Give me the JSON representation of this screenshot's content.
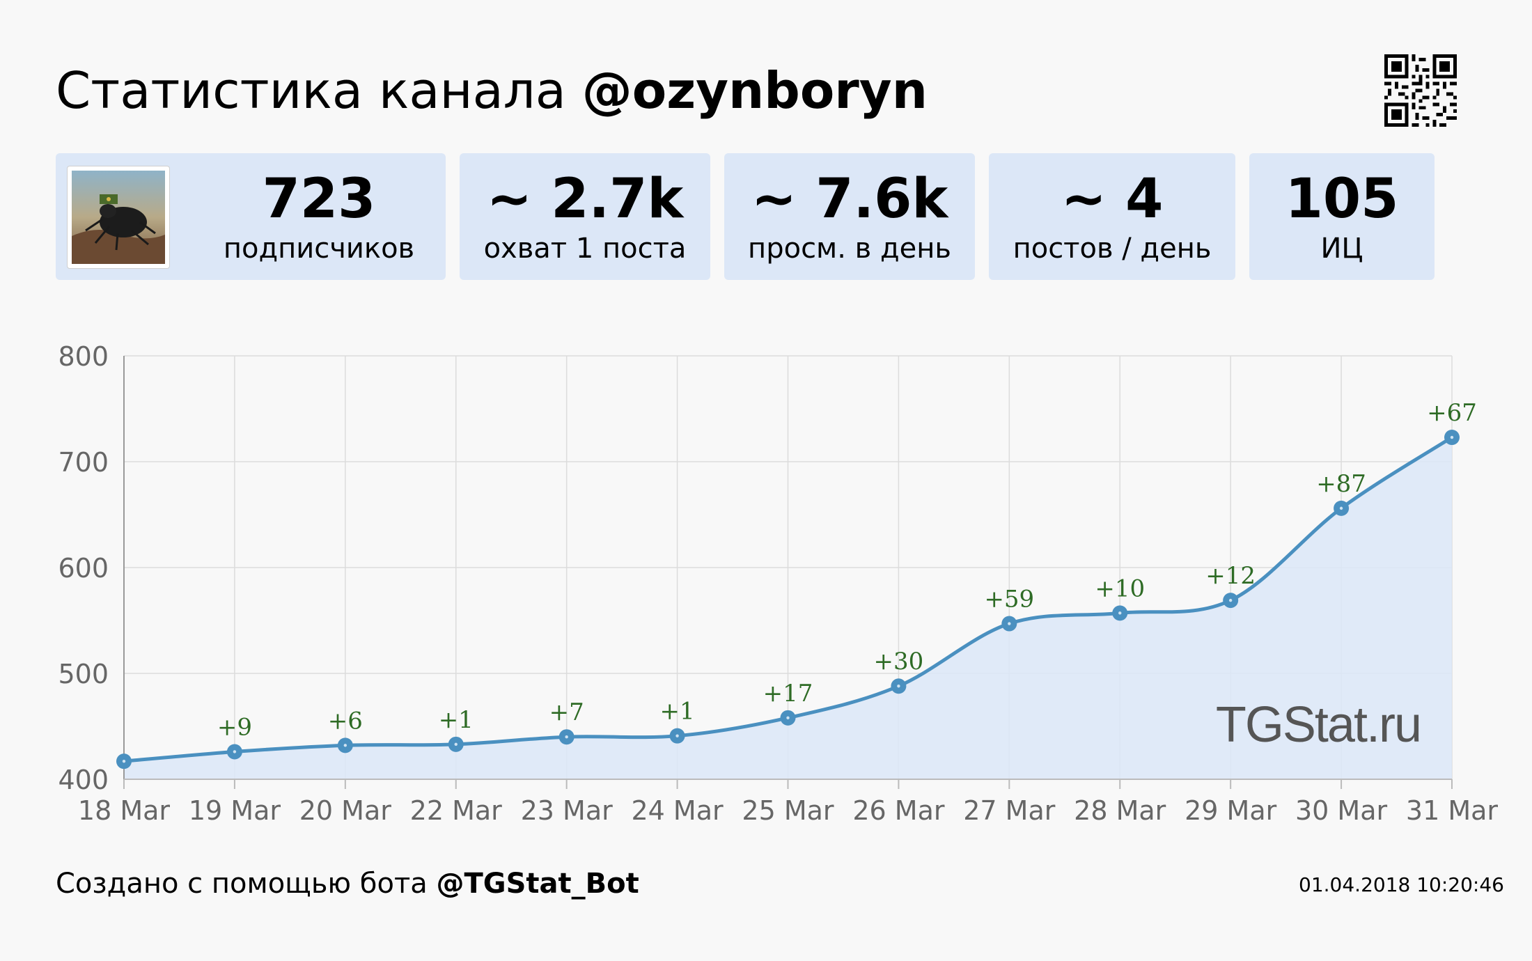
{
  "header": {
    "title_prefix": "Статистика канала",
    "channel": "@ozynboryn"
  },
  "stats": [
    {
      "value": "723",
      "label": "подписчиков"
    },
    {
      "value": "~ 2.7k",
      "label": "охват 1 поста"
    },
    {
      "value": "~ 7.6k",
      "label": "просм. в день"
    },
    {
      "value": "~ 4",
      "label": "постов / день"
    },
    {
      "value": "105",
      "label": "ИЦ"
    }
  ],
  "chart_data": {
    "type": "area",
    "x": [
      "18 Mar",
      "19 Mar",
      "20 Mar",
      "22 Mar",
      "23 Mar",
      "24 Mar",
      "25 Mar",
      "26 Mar",
      "27 Mar",
      "28 Mar",
      "29 Mar",
      "30 Mar",
      "31 Mar"
    ],
    "series": [
      {
        "values": [
          417,
          426,
          432,
          433,
          440,
          441,
          458,
          488,
          547,
          557,
          569,
          656,
          723
        ],
        "annotations": [
          "",
          "+9",
          "+6",
          "+1",
          "+7",
          "+1",
          "+17",
          "+30",
          "+59",
          "+10",
          "+12",
          "+87",
          "+67"
        ]
      }
    ],
    "ylim": [
      400,
      800
    ],
    "yticks": [
      400,
      500,
      600,
      700,
      800
    ],
    "grid": true,
    "watermark": "TGStat.ru",
    "colors": {
      "line": "#4a90c0",
      "fill": "#dce8f8",
      "annotation": "#2e6b25"
    }
  },
  "footer": {
    "prefix": "Создано с помощью бота",
    "bot": "@TGStat_Bot",
    "timestamp": "01.04.2018 10:20:46"
  }
}
